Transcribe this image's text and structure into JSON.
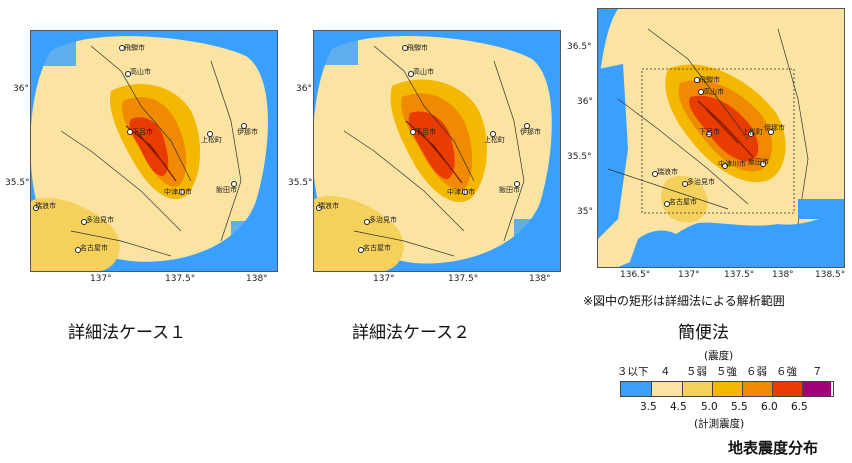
{
  "colors": {
    "ocean": "#2f8fe6",
    "level_le3": "#3aa0ff",
    "level_4": "#fbe3a2",
    "level_5lo": "#f5d05a",
    "level_5hi": "#f5b800",
    "level_6lo": "#f08a00",
    "level_6hi": "#e83c00",
    "level_7": "#a0007a",
    "roads": "#333333",
    "faults": "#7a1a00"
  },
  "maps": [
    {
      "id": "case1",
      "caption": "詳細法ケース１",
      "x_ticks": [
        "137°",
        "137.5°",
        "138°"
      ],
      "y_ticks": [
        "36°",
        "35.5°"
      ],
      "cities": [
        "飛騨市",
        "高山市",
        "下呂市",
        "上松町",
        "伊那市",
        "飯田市",
        "中津川市",
        "瑞浪市",
        "多治見市",
        "名古屋市"
      ]
    },
    {
      "id": "case2",
      "caption": "詳細法ケース２",
      "x_ticks": [
        "137°",
        "137.5°",
        "138°"
      ],
      "y_ticks": [
        "36°",
        "35.5°"
      ],
      "cities": [
        "飛騨市",
        "高山市",
        "下呂市",
        "上松町",
        "伊那市",
        "飯田市",
        "中津川市",
        "瑞浪市",
        "多治見市",
        "名古屋市"
      ]
    },
    {
      "id": "simple",
      "caption": "簡便法",
      "x_ticks": [
        "136.5°",
        "137°",
        "137.5°",
        "138°",
        "138.5°"
      ],
      "y_ticks": [
        "36.5°",
        "36°",
        "35.5°",
        "35°"
      ],
      "cities": [
        "飛騨市",
        "高山市",
        "下呂市",
        "上松町",
        "伊那市",
        "飯田市",
        "中津川市",
        "瑞浪市",
        "多治見市",
        "名古屋市"
      ]
    }
  ],
  "note": "※図中の矩形は詳細法による解析範囲",
  "legend": {
    "top_title": "(震度)",
    "intensity_labels": [
      "３以下",
      "４",
      "５弱",
      "５強",
      "６弱",
      "６強",
      "７"
    ],
    "instrument_values": [
      "3.5",
      "4.5",
      "5.0",
      "5.5",
      "6.0",
      "6.5"
    ],
    "bottom_title": "(計測震度)"
  },
  "figure_title": "地表震度分布"
}
